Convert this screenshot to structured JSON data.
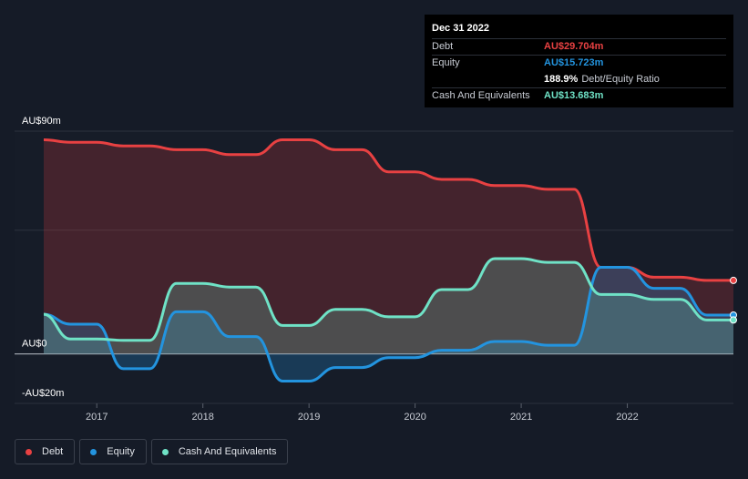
{
  "chart_data": {
    "type": "area",
    "y_axis": {
      "ylim": [
        -20,
        90
      ],
      "tick_labels": [
        {
          "value": 90,
          "label": "AU$90m"
        },
        {
          "value": 0,
          "label": "AU$0"
        },
        {
          "value": -20,
          "label": "-AU$20m"
        }
      ],
      "gridlines": [
        90,
        50,
        0,
        -20
      ]
    },
    "x_axis": {
      "xlim": [
        2016.5,
        2023.0
      ],
      "tick_labels": [
        {
          "value": 2017,
          "label": "2017"
        },
        {
          "value": 2018,
          "label": "2018"
        },
        {
          "value": 2019,
          "label": "2019"
        },
        {
          "value": 2020,
          "label": "2020"
        },
        {
          "value": 2021,
          "label": "2021"
        },
        {
          "value": 2022,
          "label": "2022"
        }
      ]
    },
    "series": [
      {
        "name": "Debt",
        "color": "#e84142",
        "points": [
          [
            2016.5,
            86.5
          ],
          [
            2016.75,
            85.5
          ],
          [
            2017.0,
            85.5
          ],
          [
            2017.25,
            84
          ],
          [
            2017.5,
            84
          ],
          [
            2017.75,
            82.5
          ],
          [
            2018.0,
            82.5
          ],
          [
            2018.25,
            80.5
          ],
          [
            2018.5,
            80.5
          ],
          [
            2018.75,
            86.5
          ],
          [
            2019.0,
            86.5
          ],
          [
            2019.25,
            82.5
          ],
          [
            2019.5,
            82.5
          ],
          [
            2019.75,
            73.5
          ],
          [
            2020.0,
            73.5
          ],
          [
            2020.25,
            70.5
          ],
          [
            2020.5,
            70.5
          ],
          [
            2020.75,
            68
          ],
          [
            2021.0,
            68
          ],
          [
            2021.25,
            66.5
          ],
          [
            2021.5,
            66.5
          ],
          [
            2021.75,
            35
          ],
          [
            2022.0,
            35
          ],
          [
            2022.25,
            31
          ],
          [
            2022.5,
            31
          ],
          [
            2022.75,
            29.7
          ],
          [
            2023.0,
            29.7
          ]
        ]
      },
      {
        "name": "Equity",
        "color": "#2394df",
        "points": [
          [
            2016.5,
            16
          ],
          [
            2016.75,
            12
          ],
          [
            2017.0,
            12
          ],
          [
            2017.25,
            -6
          ],
          [
            2017.5,
            -6
          ],
          [
            2017.75,
            17
          ],
          [
            2018.0,
            17
          ],
          [
            2018.25,
            7
          ],
          [
            2018.5,
            7
          ],
          [
            2018.75,
            -11
          ],
          [
            2019.0,
            -11
          ],
          [
            2019.25,
            -5.5
          ],
          [
            2019.5,
            -5.5
          ],
          [
            2019.75,
            -1.5
          ],
          [
            2020.0,
            -1.5
          ],
          [
            2020.25,
            1.5
          ],
          [
            2020.5,
            1.5
          ],
          [
            2020.75,
            5
          ],
          [
            2021.0,
            5
          ],
          [
            2021.25,
            3.5
          ],
          [
            2021.5,
            3.5
          ],
          [
            2021.75,
            35
          ],
          [
            2022.0,
            35
          ],
          [
            2022.25,
            26.5
          ],
          [
            2022.5,
            26.5
          ],
          [
            2022.75,
            15.7
          ],
          [
            2023.0,
            15.7
          ]
        ]
      },
      {
        "name": "Cash And Equivalents",
        "color": "#6fe2c6",
        "points": [
          [
            2016.5,
            16
          ],
          [
            2016.75,
            6
          ],
          [
            2017.0,
            6
          ],
          [
            2017.25,
            5.5
          ],
          [
            2017.5,
            5.5
          ],
          [
            2017.75,
            28.5
          ],
          [
            2018.0,
            28.5
          ],
          [
            2018.25,
            27
          ],
          [
            2018.5,
            27
          ],
          [
            2018.75,
            11.5
          ],
          [
            2019.0,
            11.5
          ],
          [
            2019.25,
            18
          ],
          [
            2019.5,
            18
          ],
          [
            2019.75,
            15
          ],
          [
            2020.0,
            15
          ],
          [
            2020.25,
            26
          ],
          [
            2020.5,
            26
          ],
          [
            2020.75,
            38.5
          ],
          [
            2021.0,
            38.5
          ],
          [
            2021.25,
            37
          ],
          [
            2021.5,
            37
          ],
          [
            2021.75,
            24
          ],
          [
            2022.0,
            24
          ],
          [
            2022.25,
            22
          ],
          [
            2022.5,
            22
          ],
          [
            2022.75,
            13.7
          ],
          [
            2023.0,
            13.7
          ]
        ]
      }
    ]
  },
  "tooltip": {
    "date": "Dec 31 2022",
    "rows": [
      {
        "label": "Debt",
        "value": "AU$29.704m",
        "color": "#e84142"
      },
      {
        "label": "Equity",
        "value": "AU$15.723m",
        "color": "#2394df"
      },
      {
        "label": "",
        "ratio_value": "188.9%",
        "ratio_text": "Debt/Equity Ratio"
      },
      {
        "label": "Cash And Equivalents",
        "value": "AU$13.683m",
        "color": "#6fe2c6"
      }
    ]
  },
  "legend": [
    {
      "label": "Debt",
      "color": "#e84142"
    },
    {
      "label": "Equity",
      "color": "#2394df"
    },
    {
      "label": "Cash And Equivalents",
      "color": "#6fe2c6"
    }
  ]
}
